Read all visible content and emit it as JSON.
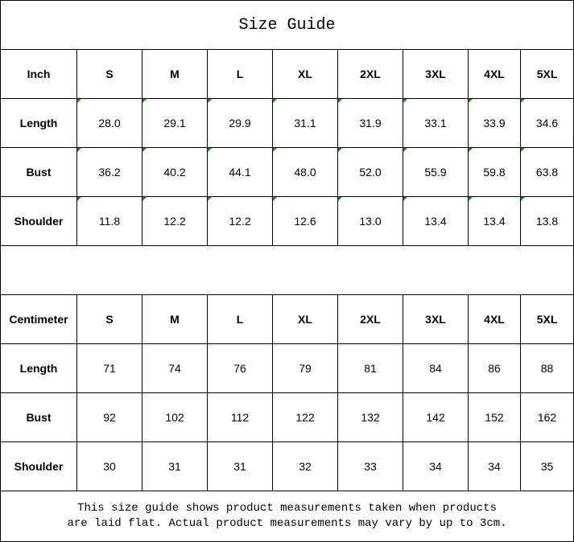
{
  "title": "Size Guide",
  "sizes": [
    "S",
    "M",
    "L",
    "XL",
    "2XL",
    "3XL",
    "4XL",
    "5XL"
  ],
  "tables": [
    {
      "unit": "Inch",
      "flagged": true,
      "rows": [
        {
          "label": "Length",
          "values": [
            "28.0",
            "29.1",
            "29.9",
            "31.1",
            "31.9",
            "33.1",
            "33.9",
            "34.6"
          ]
        },
        {
          "label": "Bust",
          "values": [
            "36.2",
            "40.2",
            "44.1",
            "48.0",
            "52.0",
            "55.9",
            "59.8",
            "63.8"
          ]
        },
        {
          "label": "Shoulder",
          "values": [
            "11.8",
            "12.2",
            "12.2",
            "12.6",
            "13.0",
            "13.4",
            "13.4",
            "13.8"
          ]
        }
      ]
    },
    {
      "unit": "Centimeter",
      "flagged": false,
      "rows": [
        {
          "label": "Length",
          "values": [
            "71",
            "74",
            "76",
            "79",
            "81",
            "84",
            "86",
            "88"
          ]
        },
        {
          "label": "Bust",
          "values": [
            "92",
            "102",
            "112",
            "122",
            "132",
            "142",
            "152",
            "162"
          ]
        },
        {
          "label": "Shoulder",
          "values": [
            "30",
            "31",
            "31",
            "32",
            "33",
            "34",
            "34",
            "35"
          ]
        }
      ]
    }
  ],
  "note_line1": "This size guide shows product measurements taken when products",
  "note_line2": "are laid flat. Actual product measurements may vary by up to 3cm.",
  "colors": {
    "flag": "#1a8a1a",
    "border": "#000000"
  }
}
